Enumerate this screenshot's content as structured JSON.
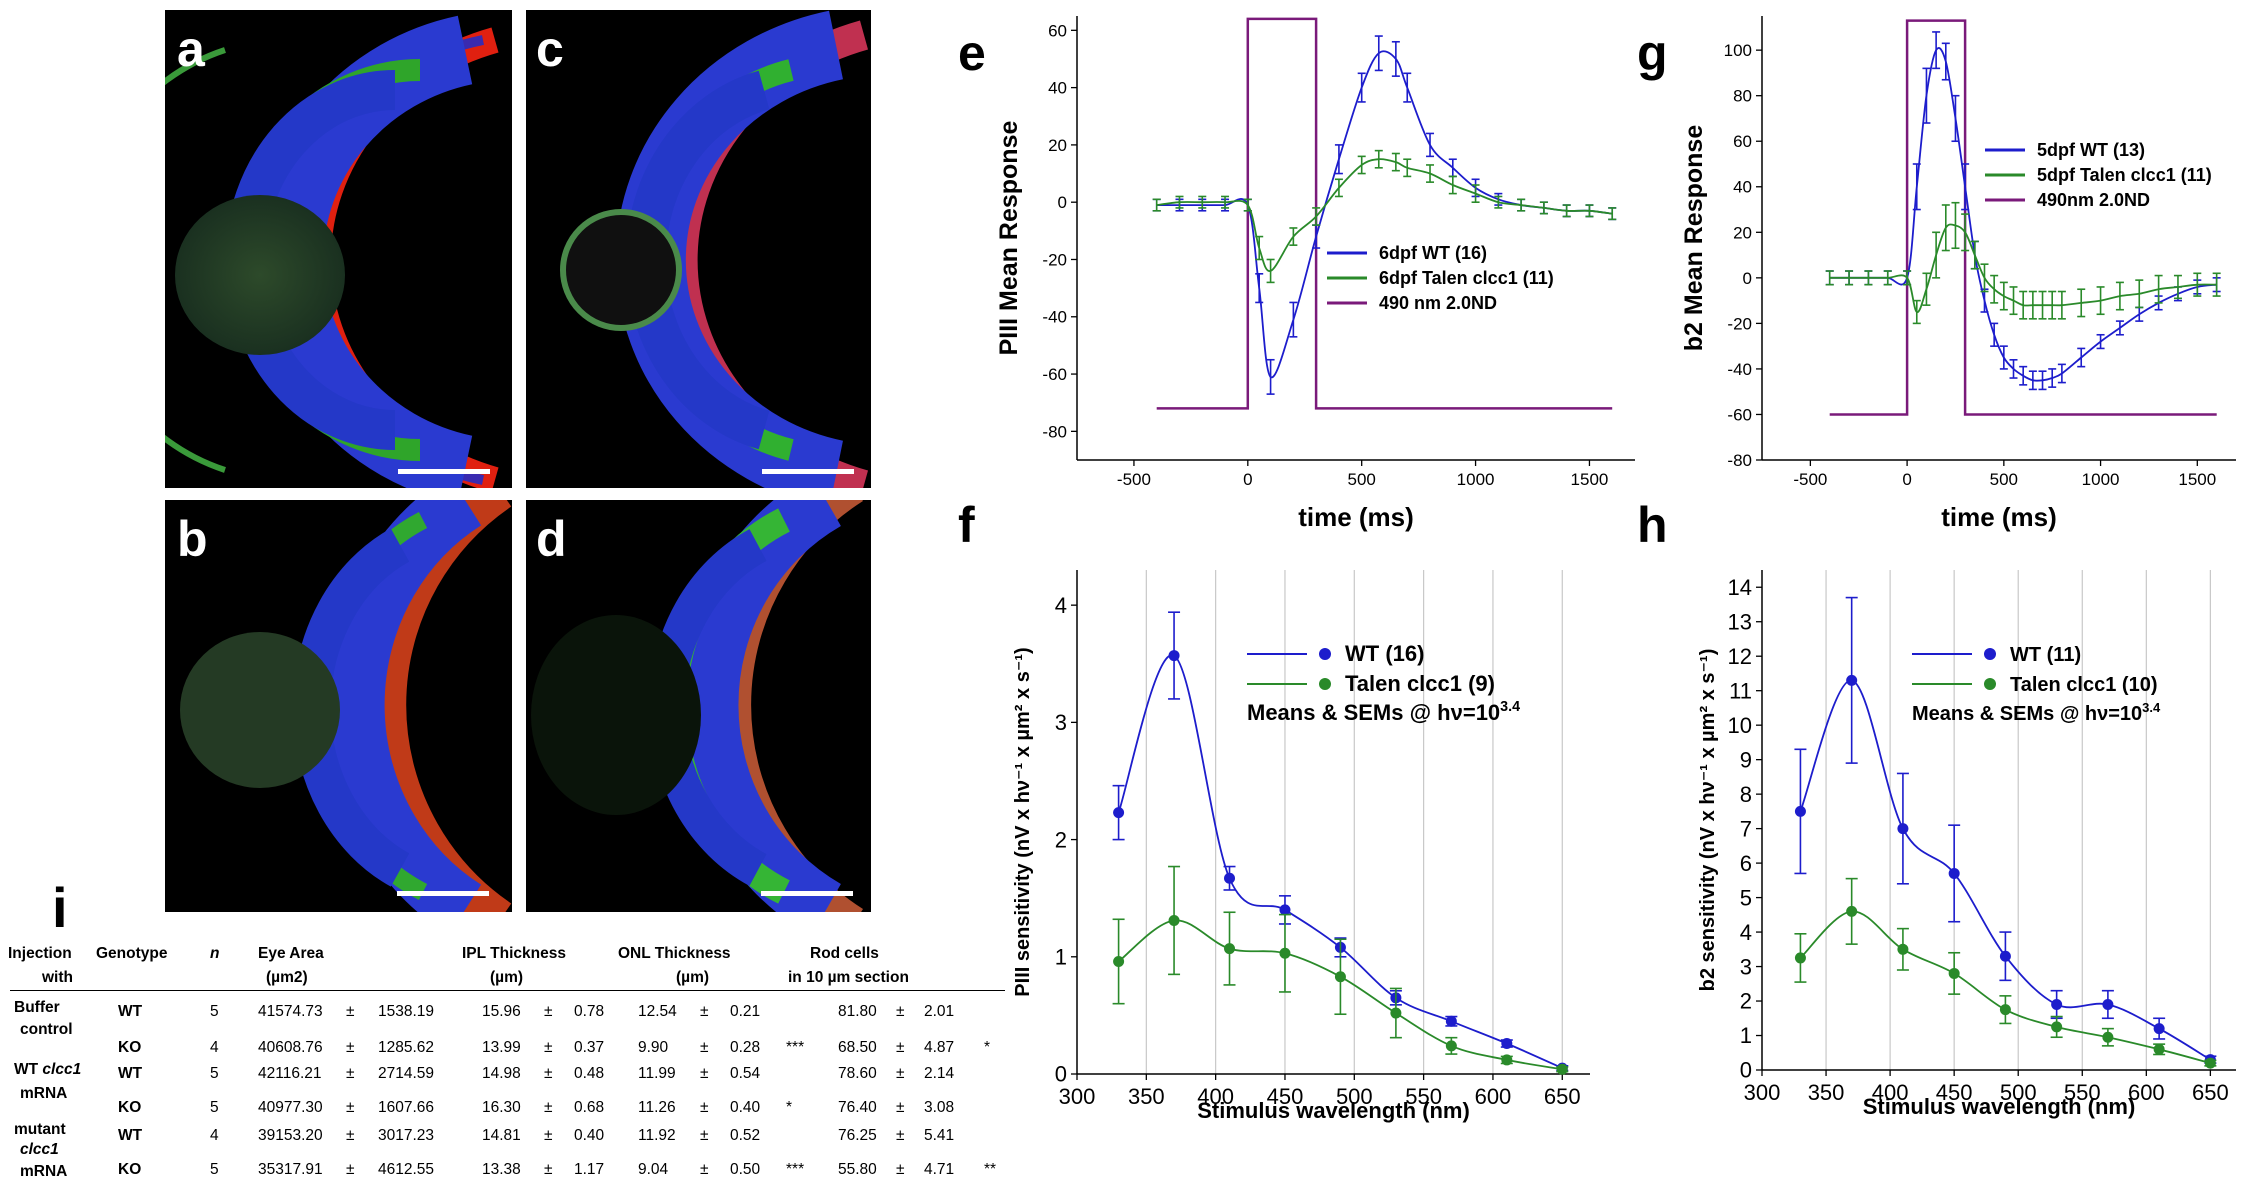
{
  "panels": {
    "a": "a",
    "b": "b",
    "c": "c",
    "d": "d",
    "e": "e",
    "f": "f",
    "g": "g",
    "h": "h",
    "i": "i"
  },
  "colors": {
    "wt": "#1d1dcc",
    "talen": "#2a8a2a",
    "stimulus": "#7a1a7a",
    "grid": "#c8c8c8"
  },
  "chart_data": [
    {
      "id": "e",
      "type": "line",
      "title": "",
      "xlabel": "time (ms)",
      "ylabel": "PIII Mean Response",
      "xlim": [
        -750,
        1700
      ],
      "ylim": [
        -90,
        65
      ],
      "xticks": [
        -500,
        0,
        500,
        1000,
        1500
      ],
      "yticks": [
        -80,
        -60,
        -40,
        -20,
        0,
        20,
        40,
        60
      ],
      "xtick_labels": [
        "-500",
        "0",
        "500",
        "1000",
        "1500"
      ],
      "ytick_labels": [
        "-80",
        "-60",
        "-40",
        "-20",
        "0",
        "20",
        "40",
        "60"
      ],
      "legend": [
        "6dpf WT (16)",
        "6dpf Talen clcc1 (11)",
        "490 nm 2.0ND"
      ],
      "legend_position": "center-right",
      "stimulus": {
        "name": "490 nm 2.0ND",
        "x": [
          -400,
          0,
          0,
          300,
          300,
          1600
        ],
        "y": [
          -72,
          -72,
          64,
          64,
          -72,
          -72
        ]
      },
      "series": [
        {
          "name": "6dpf WT (16)",
          "x": [
            -400,
            -300,
            -200,
            -100,
            0,
            50,
            100,
            200,
            300,
            400,
            500,
            575,
            650,
            700,
            800,
            900,
            1000,
            1100,
            1200,
            1300,
            1400,
            1500,
            1600
          ],
          "y": [
            -1,
            -1,
            -1,
            -1,
            -1,
            -30,
            -61,
            -41,
            -12,
            15,
            40,
            52,
            50,
            40,
            20,
            12,
            5,
            1,
            -1,
            -2,
            -3,
            -3,
            -4
          ],
          "err": [
            2,
            2,
            2,
            2,
            2,
            5,
            6,
            6,
            4,
            5,
            5,
            6,
            6,
            5,
            4,
            3,
            3,
            2,
            2,
            2,
            2,
            2,
            2
          ]
        },
        {
          "name": "6dpf Talen clcc1 (11)",
          "x": [
            -400,
            -300,
            -200,
            -100,
            0,
            50,
            100,
            200,
            300,
            400,
            500,
            575,
            650,
            700,
            800,
            900,
            1000,
            1100,
            1200,
            1300,
            1400,
            1500,
            1600
          ],
          "y": [
            -1,
            0,
            0,
            0,
            -1,
            -16,
            -24,
            -12,
            -5,
            5,
            13,
            15,
            14,
            12,
            10,
            6,
            3,
            0,
            -1,
            -2,
            -3,
            -3,
            -4
          ],
          "err": [
            2,
            2,
            2,
            2,
            2,
            4,
            4,
            3,
            3,
            3,
            3,
            3,
            3,
            3,
            3,
            3,
            3,
            2,
            2,
            2,
            2,
            2,
            2
          ]
        }
      ]
    },
    {
      "id": "g",
      "type": "line",
      "title": "",
      "xlabel": "time (ms)",
      "ylabel": "b2 Mean Response",
      "xlim": [
        -750,
        1700
      ],
      "ylim": [
        -80,
        115
      ],
      "xticks": [
        -500,
        0,
        500,
        1000,
        1500
      ],
      "yticks": [
        -80,
        -60,
        -40,
        -20,
        0,
        20,
        40,
        60,
        80,
        100
      ],
      "xtick_labels": [
        "-500",
        "0",
        "500",
        "1000",
        "1500"
      ],
      "ytick_labels": [
        "-80",
        "-60",
        "-40",
        "-20",
        "0",
        "20",
        "40",
        "60",
        "80",
        "100"
      ],
      "legend": [
        "5dpf WT (13)",
        "5dpf Talen clcc1 (11)",
        "490nm 2.0ND"
      ],
      "legend_position": "top-right",
      "stimulus": {
        "name": "490nm 2.0ND",
        "x": [
          -400,
          0,
          0,
          300,
          300,
          1600
        ],
        "y": [
          -60,
          -60,
          113,
          113,
          -60,
          -60
        ]
      },
      "series": [
        {
          "name": "5dpf WT (13)",
          "x": [
            -400,
            -300,
            -200,
            -100,
            0,
            50,
            100,
            150,
            200,
            250,
            300,
            350,
            400,
            450,
            500,
            550,
            600,
            650,
            700,
            750,
            800,
            900,
            1000,
            1100,
            1200,
            1300,
            1400,
            1500,
            1600
          ],
          "y": [
            0,
            0,
            0,
            0,
            0,
            40,
            80,
            100,
            95,
            70,
            40,
            10,
            -10,
            -25,
            -35,
            -40,
            -43,
            -45,
            -45,
            -44,
            -42,
            -35,
            -28,
            -22,
            -16,
            -11,
            -7,
            -4,
            -3
          ],
          "err": [
            3,
            3,
            3,
            3,
            3,
            10,
            12,
            8,
            8,
            10,
            10,
            6,
            5,
            5,
            5,
            4,
            4,
            4,
            4,
            4,
            4,
            4,
            3,
            3,
            3,
            3,
            3,
            3,
            3
          ]
        },
        {
          "name": "5dpf Talen clcc1 (11)",
          "x": [
            -400,
            -300,
            -200,
            -100,
            0,
            50,
            100,
            150,
            200,
            250,
            300,
            350,
            400,
            450,
            500,
            550,
            600,
            650,
            700,
            750,
            800,
            900,
            1000,
            1100,
            1200,
            1300,
            1400,
            1500,
            1600
          ],
          "y": [
            0,
            0,
            0,
            0,
            0,
            -15,
            -5,
            10,
            22,
            23,
            20,
            10,
            0,
            -5,
            -8,
            -10,
            -12,
            -12,
            -12,
            -12,
            -12,
            -11,
            -10,
            -8,
            -7,
            -5,
            -4,
            -3,
            -3
          ],
          "err": [
            3,
            3,
            3,
            3,
            3,
            5,
            7,
            10,
            10,
            10,
            8,
            6,
            6,
            6,
            6,
            6,
            6,
            6,
            6,
            6,
            6,
            6,
            6,
            6,
            6,
            6,
            5,
            5,
            5
          ]
        }
      ]
    },
    {
      "id": "f",
      "type": "line",
      "title": "",
      "xlabel": "Stimulus wavelength (nm)",
      "ylabel": "PIII sensitivity (nV x hν⁻¹ x µm² x s⁻¹)",
      "xlim": [
        300,
        670
      ],
      "ylim": [
        0,
        4.3
      ],
      "xticks": [
        300,
        350,
        400,
        450,
        500,
        550,
        600,
        650
      ],
      "yticks": [
        0,
        1,
        2,
        3,
        4
      ],
      "xtick_labels": [
        "300",
        "350",
        "400",
        "450",
        "500",
        "550",
        "600",
        "650"
      ],
      "ytick_labels": [
        "0",
        "1",
        "2",
        "3",
        "4"
      ],
      "grid": "vertical",
      "legend": [
        "WT (16)",
        "Talen clcc1 (9)"
      ],
      "legend_position": "top-right",
      "annotation": "Means & SEMs @ hν=10",
      "annotation_sup": "3.4",
      "series": [
        {
          "name": "WT (16)",
          "x": [
            330,
            370,
            410,
            450,
            490,
            530,
            570,
            610,
            650
          ],
          "y": [
            2.23,
            3.57,
            1.67,
            1.4,
            1.08,
            0.65,
            0.45,
            0.26,
            0.05
          ],
          "err": [
            0.23,
            0.37,
            0.1,
            0.12,
            0.08,
            0.06,
            0.04,
            0.03,
            0.02
          ]
        },
        {
          "name": "Talen clcc1 (9)",
          "x": [
            330,
            370,
            410,
            450,
            490,
            530,
            570,
            610,
            650
          ],
          "y": [
            0.96,
            1.31,
            1.07,
            1.03,
            0.83,
            0.52,
            0.24,
            0.12,
            0.04
          ],
          "err": [
            0.36,
            0.46,
            0.31,
            0.33,
            0.32,
            0.21,
            0.07,
            0.03,
            0.02
          ]
        }
      ]
    },
    {
      "id": "h",
      "type": "line",
      "title": "",
      "xlabel": "Stimulus wavelength (nm)",
      "ylabel": "b2 sensitivity (nV x hν⁻¹ x µm² x s⁻¹)",
      "xlim": [
        300,
        670
      ],
      "ylim": [
        0,
        14.5
      ],
      "xticks": [
        300,
        350,
        400,
        450,
        500,
        550,
        600,
        650
      ],
      "yticks": [
        0,
        1,
        2,
        3,
        4,
        5,
        6,
        7,
        8,
        9,
        10,
        11,
        12,
        13,
        14
      ],
      "xtick_labels": [
        "300",
        "350",
        "400",
        "450",
        "500",
        "550",
        "600",
        "650"
      ],
      "ytick_labels": [
        "0",
        "1",
        "2",
        "3",
        "4",
        "5",
        "6",
        "7",
        "8",
        "9",
        "10",
        "11",
        "12",
        "13",
        "14"
      ],
      "grid": "vertical",
      "legend": [
        "WT (11)",
        "Talen clcc1 (10)"
      ],
      "legend_position": "top-right",
      "annotation": "Means & SEMs @ hν=10",
      "annotation_sup": "3.4",
      "series": [
        {
          "name": "WT (11)",
          "x": [
            330,
            370,
            410,
            450,
            490,
            530,
            570,
            610,
            650
          ],
          "y": [
            7.5,
            11.3,
            7.0,
            5.7,
            3.3,
            1.9,
            1.9,
            1.2,
            0.3
          ],
          "err": [
            1.8,
            2.4,
            1.6,
            1.4,
            0.7,
            0.4,
            0.4,
            0.3,
            0.1
          ]
        },
        {
          "name": "Talen clcc1 (10)",
          "x": [
            330,
            370,
            410,
            450,
            490,
            530,
            570,
            610,
            650
          ],
          "y": [
            3.25,
            4.6,
            3.5,
            2.8,
            1.75,
            1.25,
            0.95,
            0.6,
            0.2
          ],
          "err": [
            0.7,
            0.95,
            0.6,
            0.6,
            0.4,
            0.3,
            0.25,
            0.15,
            0.08
          ]
        }
      ]
    }
  ],
  "table": {
    "headers": {
      "injection_line1": "Injection",
      "injection_line2": "with",
      "genotype": "Genotype",
      "n": "n",
      "eye_line1": "Eye Area",
      "eye_line2": "(µm2)",
      "ipl_line1": "IPL Thickness",
      "ipl_line2": "(µm)",
      "onl_line1": "ONL Thickness",
      "onl_line2": "(µm)",
      "rod_line1": "Rod cells",
      "rod_line2": "in 10 µm section"
    },
    "groups": [
      {
        "line1": "Buffer",
        "line1_italic": "",
        "line2": "control",
        "line2_italic": ""
      },
      {
        "line1": "WT ",
        "line1_italic": "clcc1",
        "line2": "mRNA",
        "line2_italic": ""
      },
      {
        "line1": "mutant",
        "line1_italic": "",
        "line2": "",
        "line2_italic": "clcc1",
        "line3": "mRNA"
      }
    ],
    "pm": "±",
    "rows": [
      {
        "genotype": "WT",
        "n": "5",
        "eye": "41574.73",
        "eye_sd": "1538.19",
        "ipl": "15.96",
        "ipl_sd": "0.78",
        "onl": "12.54",
        "onl_sd": "0.21",
        "onl_sig": "",
        "rod": "81.80",
        "rod_sd": "2.01",
        "rod_sig": ""
      },
      {
        "genotype": "KO",
        "n": "4",
        "eye": "40608.76",
        "eye_sd": "1285.62",
        "ipl": "13.99",
        "ipl_sd": "0.37",
        "onl": "9.90",
        "onl_sd": "0.28",
        "onl_sig": "***",
        "rod": "68.50",
        "rod_sd": "4.87",
        "rod_sig": "*"
      },
      {
        "genotype": "WT",
        "n": "5",
        "eye": "42116.21",
        "eye_sd": "2714.59",
        "ipl": "14.98",
        "ipl_sd": "0.48",
        "onl": "11.99",
        "onl_sd": "0.54",
        "onl_sig": "",
        "rod": "78.60",
        "rod_sd": "2.14",
        "rod_sig": ""
      },
      {
        "genotype": "KO",
        "n": "5",
        "eye": "40977.30",
        "eye_sd": "1607.66",
        "ipl": "16.30",
        "ipl_sd": "0.68",
        "onl": "11.26",
        "onl_sd": "0.40",
        "onl_sig": "*",
        "rod": "76.40",
        "rod_sd": "3.08",
        "rod_sig": ""
      },
      {
        "genotype": "WT",
        "n": "4",
        "eye": "39153.20",
        "eye_sd": "3017.23",
        "ipl": "14.81",
        "ipl_sd": "0.40",
        "onl": "11.92",
        "onl_sd": "0.52",
        "onl_sig": "",
        "rod": "76.25",
        "rod_sd": "5.41",
        "rod_sig": ""
      },
      {
        "genotype": "KO",
        "n": "5",
        "eye": "35317.91",
        "eye_sd": "4612.55",
        "ipl": "13.38",
        "ipl_sd": "1.17",
        "onl": "9.04",
        "onl_sd": "0.50",
        "onl_sig": "***",
        "rod": "55.80",
        "rod_sd": "4.71",
        "rod_sig": "**"
      }
    ]
  }
}
